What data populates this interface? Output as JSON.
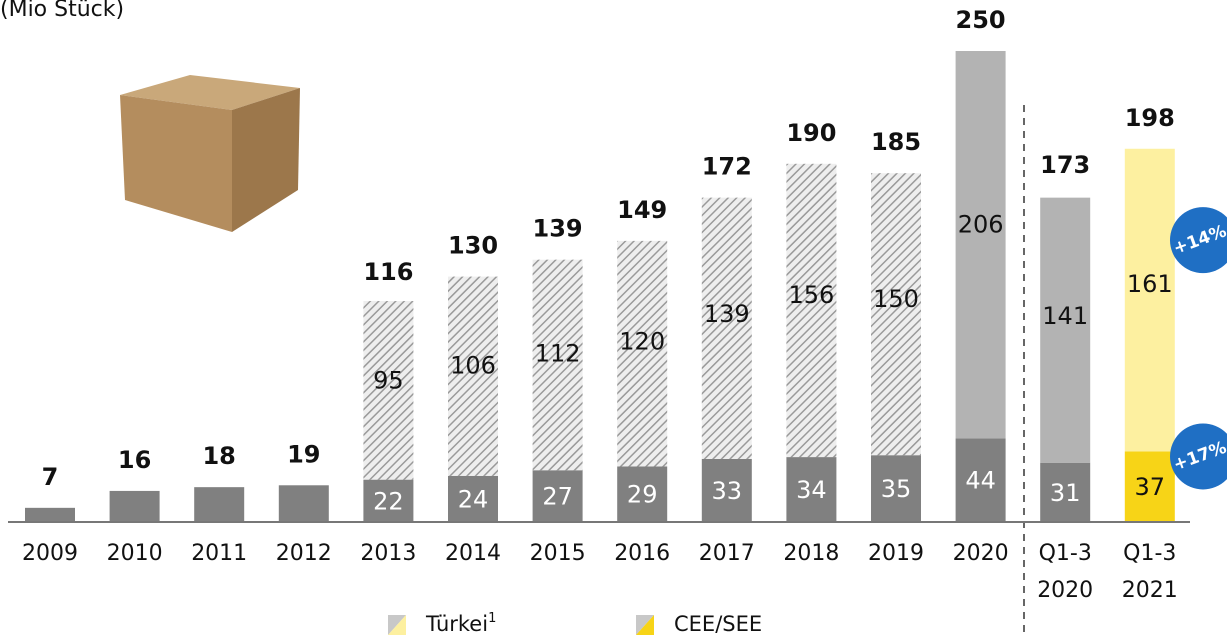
{
  "chart_data": {
    "type": "stacked-bar",
    "subtitle": "(Mio Stück)",
    "categories": [
      "2009",
      "2010",
      "2011",
      "2012",
      "2013",
      "2014",
      "2015",
      "2016",
      "2017",
      "2018",
      "2019",
      "2020",
      "Q1-3\n2020",
      "Q1-3\n2021"
    ],
    "series": [
      {
        "name": "CEE/SEE",
        "color": "#f7d417",
        "colors": [
          "#808080",
          "#808080",
          "#808080",
          "#808080",
          "#808080",
          "#808080",
          "#808080",
          "#808080",
          "#808080",
          "#808080",
          "#808080",
          "#808080",
          "#808080",
          "#f7d417"
        ],
        "values": [
          7,
          16,
          18,
          19,
          22,
          24,
          27,
          29,
          33,
          34,
          35,
          44,
          31,
          37
        ]
      },
      {
        "name": "Türkei",
        "footnote_mark": "1",
        "color": "#fdf0a0",
        "colors": [
          "#c8c8c8",
          "#c8c8c8",
          "#c8c8c8",
          "#c8c8c8",
          "#c8c8c8",
          "#c8c8c8",
          "#c8c8c8",
          "#c8c8c8",
          "#c8c8c8",
          "#c8c8c8",
          "#c8c8c8",
          "#b3b3b3",
          "#b3b3b3",
          "#fdf0a0"
        ],
        "hatched": [
          false,
          false,
          false,
          false,
          true,
          true,
          true,
          true,
          true,
          true,
          true,
          false,
          false,
          false
        ],
        "values": [
          null,
          null,
          null,
          null,
          95,
          106,
          112,
          120,
          139,
          156,
          150,
          206,
          141,
          161
        ]
      }
    ],
    "totals": [
      7,
      16,
      18,
      19,
      116,
      130,
      139,
      149,
      172,
      190,
      185,
      250,
      173,
      198
    ],
    "annotations": [
      {
        "text": "+14%",
        "series": 1
      },
      {
        "text": "+17%",
        "series": 0
      }
    ],
    "ylim": [
      0,
      250
    ]
  }
}
